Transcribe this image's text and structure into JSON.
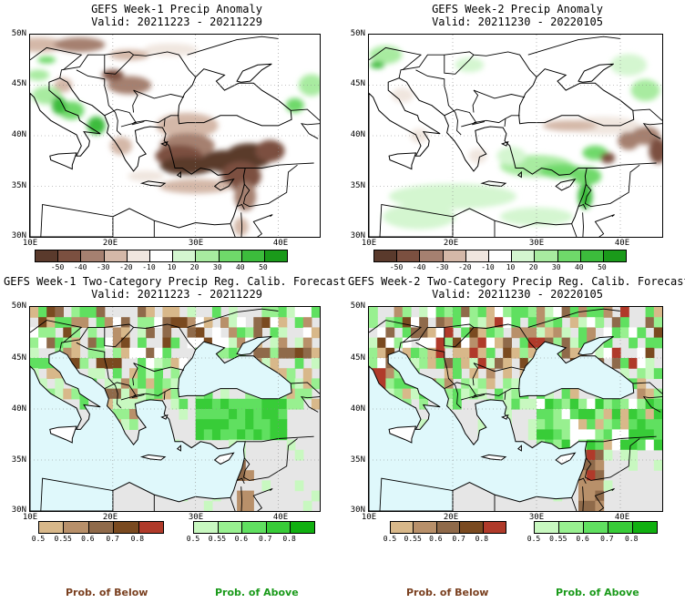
{
  "panels": [
    {
      "title": "GEFS Week-1 Precip Anomaly",
      "valid": "Valid: 20211223 - 20211229",
      "lat_labels": [
        "50N",
        "45N",
        "40N",
        "35N",
        "30N"
      ],
      "lon_labels": [
        "10E",
        "20E",
        "30E",
        "40E"
      ],
      "colorbar_labels": [
        "-50",
        "-40",
        "-30",
        "-20",
        "-10",
        "10",
        "20",
        "30",
        "40",
        "50"
      ]
    },
    {
      "title": "GEFS Week-2 Precip Anomaly",
      "valid": "Valid: 20211230 - 20220105",
      "lat_labels": [
        "50N",
        "45N",
        "40N",
        "35N",
        "30N"
      ],
      "lon_labels": [
        "10E",
        "20E",
        "30E",
        "40E"
      ],
      "colorbar_labels": [
        "-50",
        "-40",
        "-30",
        "-20",
        "-10",
        "10",
        "20",
        "30",
        "40",
        "50"
      ]
    },
    {
      "title": "GEFS Week-1 Two-Category Precip Reg. Calib. Forecast",
      "valid": "Valid: 20211223 - 20211229",
      "lat_labels": [
        "50N",
        "45N",
        "40N",
        "35N",
        "30N"
      ],
      "lon_labels": [
        "10E",
        "20E",
        "30E",
        "40E"
      ],
      "below_labels": [
        "0.5",
        "0.55",
        "0.6",
        "0.7",
        "0.8"
      ],
      "above_labels": [
        "0.5",
        "0.55",
        "0.6",
        "0.7",
        "0.8"
      ]
    },
    {
      "title": "GEFS Week-2 Two-Category Precip Reg. Calib. Forecast",
      "valid": "Valid: 20211230 - 20220105",
      "lat_labels": [
        "50N",
        "45N",
        "40N",
        "35N",
        "30N"
      ],
      "lon_labels": [
        "10E",
        "20E",
        "30E",
        "40E"
      ],
      "below_labels": [
        "0.5",
        "0.55",
        "0.6",
        "0.7",
        "0.8"
      ],
      "above_labels": [
        "0.5",
        "0.55",
        "0.6",
        "0.7",
        "0.8"
      ]
    }
  ],
  "footer": {
    "below_label": "Prob. of Below",
    "above_label": "Prob. of Above"
  },
  "colors": {
    "anomaly_scale": [
      "#5a3a2c",
      "#7b5040",
      "#a58070",
      "#d4b8a8",
      "#f0e6df",
      "#ffffff",
      "#d4f6d0",
      "#a8eba0",
      "#6fd96a",
      "#3cbc3c",
      "#1a9a1a"
    ],
    "below_scale": [
      "#d8b88a",
      "#b8906a",
      "#8f6a4a",
      "#7a4a20",
      "#b03a2a"
    ],
    "above_scale": [
      "#c8f8c0",
      "#98f090",
      "#60e060",
      "#38cc38",
      "#10b010"
    ],
    "water": "#dff8fb",
    "nodata": "#e6e6e6",
    "below_text": "#7a4020",
    "above_text": "#1a9a1a"
  }
}
